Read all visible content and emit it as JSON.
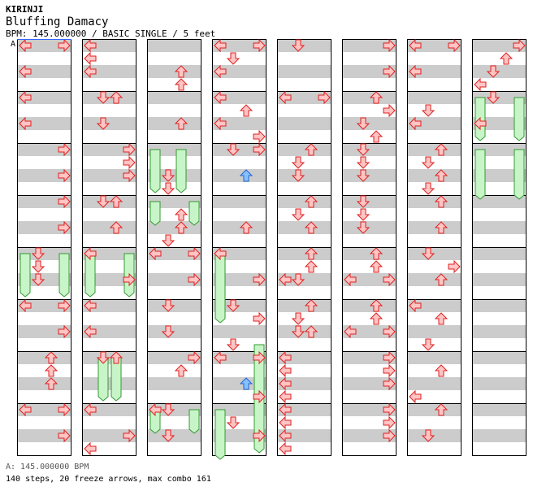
{
  "header": {
    "artist": "KIRINJI",
    "title": "Bluffing Damacy",
    "info": "BPM: 145.000000 / BASIC SINGLE / 5 feet"
  },
  "bpm_marker": {
    "label": "A",
    "beat": 0
  },
  "colors": {
    "stripe": "#cccccc",
    "arrow_red_fill": "#ffc4c4",
    "arrow_red_stroke": "#dd2222",
    "arrow_blue_fill": "#88c0ff",
    "arrow_blue_stroke": "#2266cc",
    "freeze_fill": "#c8f5c8",
    "freeze_stroke": "#339933",
    "bpm_line": "#3366ff"
  },
  "chart_data": {
    "type": "step_chart",
    "measures": 64,
    "measures_per_column": 8,
    "beats_per_measure": 4,
    "lanes": [
      "left",
      "down",
      "up",
      "right"
    ],
    "notes": [
      {
        "m": 0,
        "b": 0,
        "lane": "left"
      },
      {
        "m": 0,
        "b": 0,
        "lane": "right"
      },
      {
        "m": 0,
        "b": 2,
        "lane": "left"
      },
      {
        "m": 1,
        "b": 0,
        "lane": "left"
      },
      {
        "m": 1,
        "b": 2,
        "lane": "left"
      },
      {
        "m": 2,
        "b": 0,
        "lane": "right"
      },
      {
        "m": 2,
        "b": 2,
        "lane": "right"
      },
      {
        "m": 3,
        "b": 0,
        "lane": "right"
      },
      {
        "m": 3,
        "b": 2,
        "lane": "right"
      },
      {
        "m": 4,
        "b": 0,
        "lane": "down"
      },
      {
        "m": 4,
        "b": 1,
        "lane": "down"
      },
      {
        "m": 4,
        "b": 2,
        "lane": "down"
      },
      {
        "m": 5,
        "b": 0,
        "lane": "left"
      },
      {
        "m": 5,
        "b": 0,
        "lane": "right"
      },
      {
        "m": 5,
        "b": 2,
        "lane": "right"
      },
      {
        "m": 6,
        "b": 0,
        "lane": "up"
      },
      {
        "m": 6,
        "b": 1,
        "lane": "up"
      },
      {
        "m": 6,
        "b": 2,
        "lane": "up"
      },
      {
        "m": 7,
        "b": 0,
        "lane": "left"
      },
      {
        "m": 7,
        "b": 0,
        "lane": "right"
      },
      {
        "m": 7,
        "b": 2,
        "lane": "right"
      },
      {
        "m": 8,
        "b": 0,
        "lane": "left"
      },
      {
        "m": 8,
        "b": 1,
        "lane": "left"
      },
      {
        "m": 8,
        "b": 2,
        "lane": "left"
      },
      {
        "m": 9,
        "b": 0,
        "lane": "down"
      },
      {
        "m": 9,
        "b": 0,
        "lane": "up"
      },
      {
        "m": 9,
        "b": 2,
        "lane": "down"
      },
      {
        "m": 10,
        "b": 0,
        "lane": "right"
      },
      {
        "m": 10,
        "b": 1,
        "lane": "right"
      },
      {
        "m": 10,
        "b": 2,
        "lane": "right"
      },
      {
        "m": 11,
        "b": 0,
        "lane": "down"
      },
      {
        "m": 11,
        "b": 0,
        "lane": "up"
      },
      {
        "m": 11,
        "b": 2,
        "lane": "up"
      },
      {
        "m": 12,
        "b": 0,
        "lane": "left"
      },
      {
        "m": 12,
        "b": 2,
        "lane": "right"
      },
      {
        "m": 13,
        "b": 0,
        "lane": "left"
      },
      {
        "m": 13,
        "b": 2,
        "lane": "left"
      },
      {
        "m": 14,
        "b": 0,
        "lane": "down"
      },
      {
        "m": 14,
        "b": 0,
        "lane": "up"
      },
      {
        "m": 15,
        "b": 0,
        "lane": "left"
      },
      {
        "m": 15,
        "b": 2,
        "lane": "right"
      },
      {
        "m": 15,
        "b": 3,
        "lane": "left"
      },
      {
        "m": 16,
        "b": 2,
        "lane": "up"
      },
      {
        "m": 16,
        "b": 3,
        "lane": "up"
      },
      {
        "m": 17,
        "b": 2,
        "lane": "up"
      },
      {
        "m": 18,
        "b": 2,
        "lane": "down"
      },
      {
        "m": 18,
        "b": 3,
        "lane": "down"
      },
      {
        "m": 19,
        "b": 1,
        "lane": "up"
      },
      {
        "m": 19,
        "b": 2,
        "lane": "up"
      },
      {
        "m": 19,
        "b": 3,
        "lane": "down"
      },
      {
        "m": 20,
        "b": 0,
        "lane": "left"
      },
      {
        "m": 20,
        "b": 0,
        "lane": "right"
      },
      {
        "m": 20,
        "b": 2,
        "lane": "right"
      },
      {
        "m": 21,
        "b": 0,
        "lane": "down"
      },
      {
        "m": 21,
        "b": 2,
        "lane": "down"
      },
      {
        "m": 22,
        "b": 0,
        "lane": "right"
      },
      {
        "m": 22,
        "b": 1,
        "lane": "up"
      },
      {
        "m": 23,
        "b": 0,
        "lane": "left"
      },
      {
        "m": 23,
        "b": 0,
        "lane": "down"
      },
      {
        "m": 23,
        "b": 2,
        "lane": "down"
      },
      {
        "m": 24,
        "b": 0,
        "lane": "left"
      },
      {
        "m": 24,
        "b": 0,
        "lane": "right"
      },
      {
        "m": 24,
        "b": 1,
        "lane": "down"
      },
      {
        "m": 24,
        "b": 2,
        "lane": "left"
      },
      {
        "m": 25,
        "b": 0,
        "lane": "left"
      },
      {
        "m": 25,
        "b": 1,
        "lane": "up"
      },
      {
        "m": 25,
        "b": 2,
        "lane": "left"
      },
      {
        "m": 25,
        "b": 3,
        "lane": "right"
      },
      {
        "m": 26,
        "b": 0,
        "lane": "down"
      },
      {
        "m": 26,
        "b": 0,
        "lane": "right"
      },
      {
        "m": 26,
        "b": 2,
        "lane": "blue-up"
      },
      {
        "m": 27,
        "b": 2,
        "lane": "up"
      },
      {
        "m": 28,
        "b": 0,
        "lane": "left"
      },
      {
        "m": 28,
        "b": 2,
        "lane": "right"
      },
      {
        "m": 29,
        "b": 0,
        "lane": "down"
      },
      {
        "m": 29,
        "b": 1,
        "lane": "right"
      },
      {
        "m": 29,
        "b": 3,
        "lane": "down"
      },
      {
        "m": 30,
        "b": 0,
        "lane": "left"
      },
      {
        "m": 30,
        "b": 0,
        "lane": "right"
      },
      {
        "m": 30,
        "b": 2,
        "lane": "blue-up"
      },
      {
        "m": 30,
        "b": 3,
        "lane": "right"
      },
      {
        "m": 31,
        "b": 1,
        "lane": "down"
      },
      {
        "m": 31,
        "b": 2,
        "lane": "right"
      },
      {
        "m": 32,
        "b": 0,
        "lane": "down"
      },
      {
        "m": 33,
        "b": 0,
        "lane": "left"
      },
      {
        "m": 33,
        "b": 0,
        "lane": "right"
      },
      {
        "m": 34,
        "b": 0,
        "lane": "up"
      },
      {
        "m": 34,
        "b": 1,
        "lane": "down"
      },
      {
        "m": 34,
        "b": 2,
        "lane": "down"
      },
      {
        "m": 35,
        "b": 0,
        "lane": "up"
      },
      {
        "m": 35,
        "b": 1,
        "lane": "down"
      },
      {
        "m": 35,
        "b": 2,
        "lane": "up"
      },
      {
        "m": 36,
        "b": 0,
        "lane": "up"
      },
      {
        "m": 36,
        "b": 1,
        "lane": "up"
      },
      {
        "m": 36,
        "b": 2,
        "lane": "left"
      },
      {
        "m": 36,
        "b": 2,
        "lane": "down"
      },
      {
        "m": 37,
        "b": 0,
        "lane": "up"
      },
      {
        "m": 37,
        "b": 1,
        "lane": "down"
      },
      {
        "m": 37,
        "b": 2,
        "lane": "down"
      },
      {
        "m": 37,
        "b": 2,
        "lane": "up"
      },
      {
        "m": 38,
        "b": 0,
        "lane": "left"
      },
      {
        "m": 38,
        "b": 1,
        "lane": "left"
      },
      {
        "m": 38,
        "b": 2,
        "lane": "left"
      },
      {
        "m": 38,
        "b": 3,
        "lane": "left"
      },
      {
        "m": 39,
        "b": 0,
        "lane": "left"
      },
      {
        "m": 39,
        "b": 1,
        "lane": "left"
      },
      {
        "m": 39,
        "b": 2,
        "lane": "left"
      },
      {
        "m": 39,
        "b": 3,
        "lane": "left"
      },
      {
        "m": 40,
        "b": 0,
        "lane": "right"
      },
      {
        "m": 40,
        "b": 2,
        "lane": "right"
      },
      {
        "m": 41,
        "b": 0,
        "lane": "up"
      },
      {
        "m": 41,
        "b": 1,
        "lane": "right"
      },
      {
        "m": 41,
        "b": 2,
        "lane": "down"
      },
      {
        "m": 41,
        "b": 3,
        "lane": "up"
      },
      {
        "m": 42,
        "b": 0,
        "lane": "down"
      },
      {
        "m": 42,
        "b": 1,
        "lane": "down"
      },
      {
        "m": 42,
        "b": 2,
        "lane": "down"
      },
      {
        "m": 43,
        "b": 0,
        "lane": "down"
      },
      {
        "m": 43,
        "b": 1,
        "lane": "down"
      },
      {
        "m": 43,
        "b": 2,
        "lane": "down"
      },
      {
        "m": 44,
        "b": 0,
        "lane": "up"
      },
      {
        "m": 44,
        "b": 1,
        "lane": "up"
      },
      {
        "m": 44,
        "b": 2,
        "lane": "left"
      },
      {
        "m": 44,
        "b": 2,
        "lane": "right"
      },
      {
        "m": 45,
        "b": 0,
        "lane": "up"
      },
      {
        "m": 45,
        "b": 1,
        "lane": "up"
      },
      {
        "m": 45,
        "b": 2,
        "lane": "left"
      },
      {
        "m": 45,
        "b": 2,
        "lane": "right"
      },
      {
        "m": 46,
        "b": 0,
        "lane": "right"
      },
      {
        "m": 46,
        "b": 1,
        "lane": "right"
      },
      {
        "m": 46,
        "b": 2,
        "lane": "right"
      },
      {
        "m": 47,
        "b": 0,
        "lane": "right"
      },
      {
        "m": 47,
        "b": 1,
        "lane": "right"
      },
      {
        "m": 47,
        "b": 2,
        "lane": "right"
      },
      {
        "m": 48,
        "b": 0,
        "lane": "left"
      },
      {
        "m": 48,
        "b": 0,
        "lane": "right"
      },
      {
        "m": 48,
        "b": 2,
        "lane": "left"
      },
      {
        "m": 49,
        "b": 1,
        "lane": "down"
      },
      {
        "m": 49,
        "b": 2,
        "lane": "left"
      },
      {
        "m": 50,
        "b": 0,
        "lane": "up"
      },
      {
        "m": 50,
        "b": 1,
        "lane": "down"
      },
      {
        "m": 50,
        "b": 2,
        "lane": "up"
      },
      {
        "m": 50,
        "b": 3,
        "lane": "down"
      },
      {
        "m": 51,
        "b": 0,
        "lane": "up"
      },
      {
        "m": 51,
        "b": 2,
        "lane": "up"
      },
      {
        "m": 52,
        "b": 0,
        "lane": "down"
      },
      {
        "m": 52,
        "b": 1,
        "lane": "right"
      },
      {
        "m": 52,
        "b": 2,
        "lane": "up"
      },
      {
        "m": 53,
        "b": 0,
        "lane": "left"
      },
      {
        "m": 53,
        "b": 1,
        "lane": "up"
      },
      {
        "m": 53,
        "b": 3,
        "lane": "down"
      },
      {
        "m": 54,
        "b": 1,
        "lane": "up"
      },
      {
        "m": 54,
        "b": 3,
        "lane": "left"
      },
      {
        "m": 55,
        "b": 0,
        "lane": "up"
      },
      {
        "m": 55,
        "b": 2,
        "lane": "down"
      },
      {
        "m": 56,
        "b": 0,
        "lane": "right"
      },
      {
        "m": 56,
        "b": 1,
        "lane": "up"
      },
      {
        "m": 56,
        "b": 2,
        "lane": "down"
      },
      {
        "m": 56,
        "b": 3,
        "lane": "left"
      },
      {
        "m": 57,
        "b": 0,
        "lane": "down"
      },
      {
        "m": 57,
        "b": 2,
        "lane": "left"
      }
    ],
    "freezes": [
      {
        "m": 4,
        "b": 0,
        "lane": "left",
        "len": 3.5
      },
      {
        "m": 4,
        "b": 0,
        "lane": "right",
        "len": 3.5
      },
      {
        "m": 18,
        "b": 0,
        "lane": "left",
        "len": 3.5
      },
      {
        "m": 18,
        "b": 0,
        "lane": "up",
        "len": 3.5
      },
      {
        "m": 19,
        "b": 0,
        "lane": "left",
        "len": 2
      },
      {
        "m": 19,
        "b": 0,
        "lane": "right",
        "len": 2
      },
      {
        "m": 12,
        "b": 0,
        "lane": "left",
        "len": 3.5
      },
      {
        "m": 12,
        "b": 0,
        "lane": "right",
        "len": 3.5
      },
      {
        "m": 14,
        "b": 0,
        "lane": "down",
        "len": 3.5
      },
      {
        "m": 14,
        "b": 0,
        "lane": "up",
        "len": 3.5
      },
      {
        "m": 23,
        "b": 0,
        "lane": "left",
        "len": 2
      },
      {
        "m": 23,
        "b": 0,
        "lane": "right",
        "len": 2
      },
      {
        "m": 28,
        "b": 0,
        "lane": "left",
        "len": 5.5
      },
      {
        "m": 29,
        "b": 3,
        "lane": "right",
        "len": 2
      },
      {
        "m": 31,
        "b": 0,
        "lane": "left",
        "len": 4
      },
      {
        "m": 30,
        "b": 0,
        "lane": "right",
        "len": 7.5
      },
      {
        "m": 57,
        "b": 0,
        "lane": "left",
        "len": 3.5
      },
      {
        "m": 57,
        "b": 0,
        "lane": "right",
        "len": 3.5
      },
      {
        "m": 58,
        "b": 0,
        "lane": "left",
        "len": 4
      },
      {
        "m": 58,
        "b": 0,
        "lane": "right",
        "len": 4
      }
    ]
  },
  "footer": {
    "bpm_line": "A: 145.000000 BPM",
    "stats": "140 steps, 20 freeze arrows, max combo 161"
  }
}
